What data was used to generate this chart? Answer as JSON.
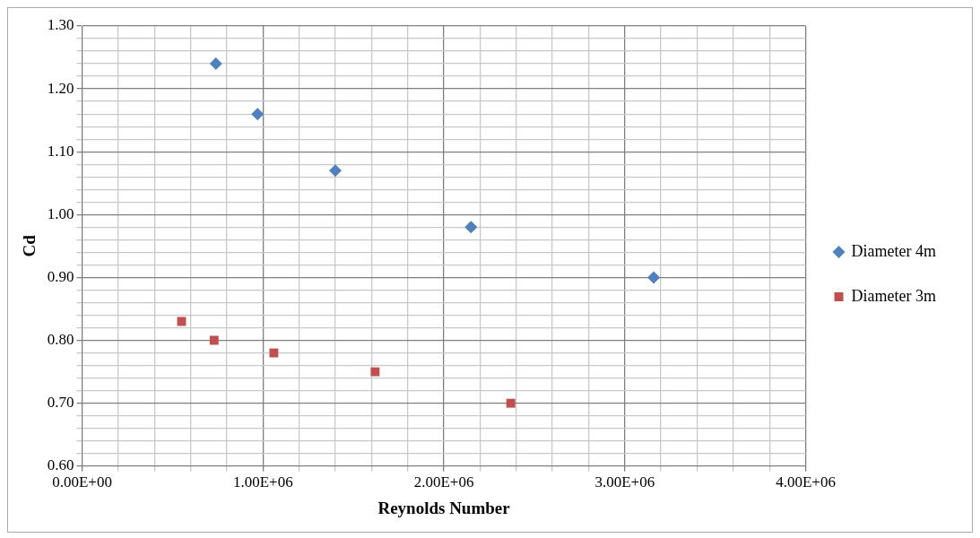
{
  "chart_data": {
    "type": "scatter",
    "xlabel": "Reynolds Number",
    "ylabel": "Cd",
    "series": [
      {
        "name": "Diameter 4m",
        "color": "#4f81bd",
        "marker": "diamond",
        "x": [
          740000,
          970000,
          1400000,
          2150000,
          3160000
        ],
        "values": [
          1.24,
          1.16,
          1.07,
          0.98,
          0.9
        ]
      },
      {
        "name": "Diameter 3m",
        "color": "#c0504d",
        "marker": "square",
        "x": [
          550000,
          730000,
          1060000,
          1620000,
          2370000
        ],
        "values": [
          0.83,
          0.8,
          0.78,
          0.75,
          0.7
        ]
      }
    ],
    "xlim": [
      0,
      4000000
    ],
    "xticks": [
      {
        "value": 0,
        "label": "0.00E+00"
      },
      {
        "value": 200000,
        "label": null
      },
      {
        "value": 400000,
        "label": null
      },
      {
        "value": 600000,
        "label": null
      },
      {
        "value": 800000,
        "label": null
      },
      {
        "value": 1000000,
        "label": "1.00E+06"
      },
      {
        "value": 1200000,
        "label": null
      },
      {
        "value": 1400000,
        "label": null
      },
      {
        "value": 1600000,
        "label": null
      },
      {
        "value": 1800000,
        "label": null
      },
      {
        "value": 2000000,
        "label": "2.00E+06"
      },
      {
        "value": 2200000,
        "label": null
      },
      {
        "value": 2400000,
        "label": null
      },
      {
        "value": 2600000,
        "label": null
      },
      {
        "value": 2800000,
        "label": null
      },
      {
        "value": 3000000,
        "label": "3.00E+06"
      },
      {
        "value": 3200000,
        "label": null
      },
      {
        "value": 3400000,
        "label": null
      },
      {
        "value": 3600000,
        "label": null
      },
      {
        "value": 3800000,
        "label": null
      },
      {
        "value": 4000000,
        "label": "4.00E+06"
      }
    ],
    "ylim": [
      0.6,
      1.3
    ],
    "yticks": [
      {
        "value": 0.6,
        "label": "0.60"
      },
      {
        "value": 0.62,
        "label": null
      },
      {
        "value": 0.64,
        "label": null
      },
      {
        "value": 0.66,
        "label": null
      },
      {
        "value": 0.68,
        "label": null
      },
      {
        "value": 0.7,
        "label": "0.70"
      },
      {
        "value": 0.72,
        "label": null
      },
      {
        "value": 0.74,
        "label": null
      },
      {
        "value": 0.76,
        "label": null
      },
      {
        "value": 0.78,
        "label": null
      },
      {
        "value": 0.8,
        "label": "0.80"
      },
      {
        "value": 0.82,
        "label": null
      },
      {
        "value": 0.84,
        "label": null
      },
      {
        "value": 0.86,
        "label": null
      },
      {
        "value": 0.88,
        "label": null
      },
      {
        "value": 0.9,
        "label": "0.90"
      },
      {
        "value": 0.92,
        "label": null
      },
      {
        "value": 0.94,
        "label": null
      },
      {
        "value": 0.96,
        "label": null
      },
      {
        "value": 0.98,
        "label": null
      },
      {
        "value": 1.0,
        "label": "1.00"
      },
      {
        "value": 1.02,
        "label": null
      },
      {
        "value": 1.04,
        "label": null
      },
      {
        "value": 1.06,
        "label": null
      },
      {
        "value": 1.08,
        "label": null
      },
      {
        "value": 1.1,
        "label": "1.10"
      },
      {
        "value": 1.12,
        "label": null
      },
      {
        "value": 1.14,
        "label": null
      },
      {
        "value": 1.16,
        "label": null
      },
      {
        "value": 1.18,
        "label": null
      },
      {
        "value": 1.2,
        "label": "1.20"
      },
      {
        "value": 1.22,
        "label": null
      },
      {
        "value": 1.24,
        "label": null
      },
      {
        "value": 1.26,
        "label": null
      },
      {
        "value": 1.28,
        "label": null
      },
      {
        "value": 1.3,
        "label": "1.30"
      }
    ],
    "grid": true,
    "legend": "right"
  }
}
